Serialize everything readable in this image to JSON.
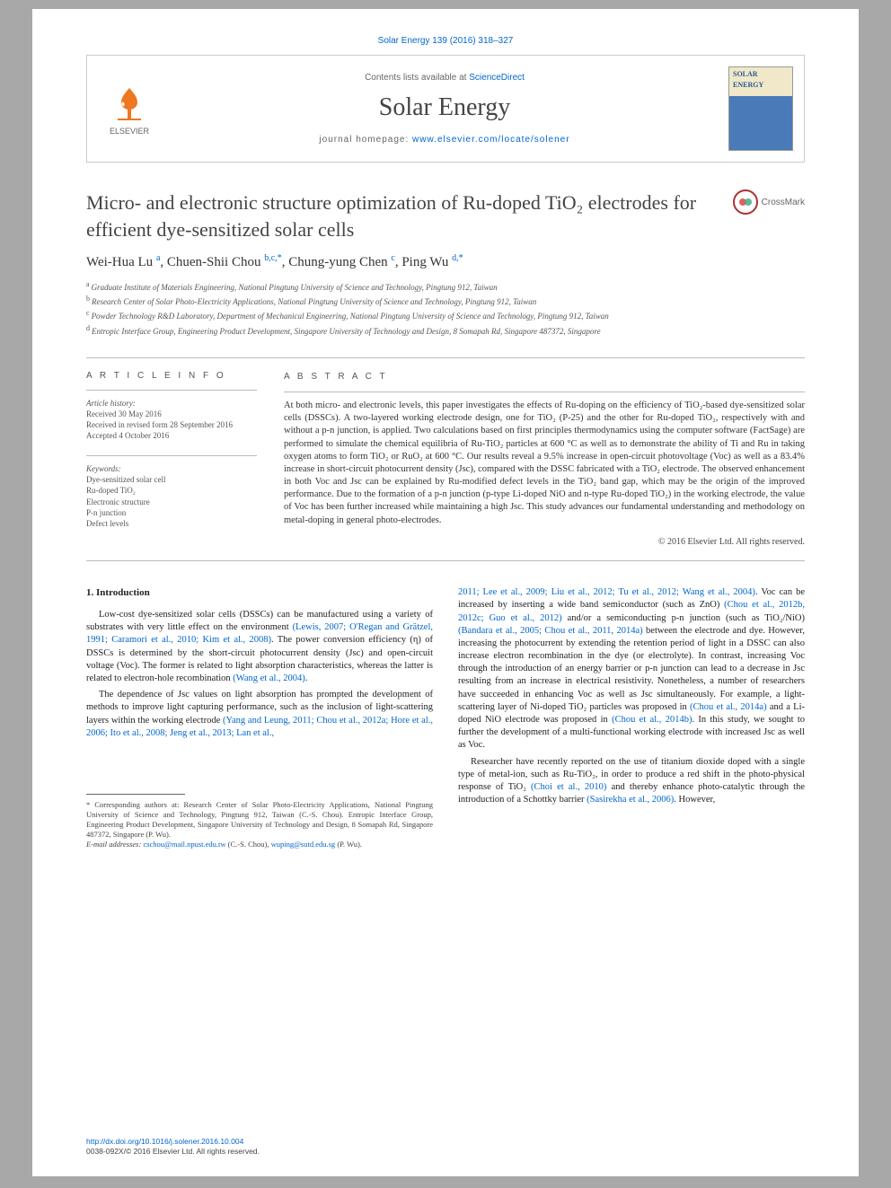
{
  "citation": "Solar Energy 139 (2016) 318–327",
  "header": {
    "contents_prefix": "Contents lists available at ",
    "contents_link": "ScienceDirect",
    "journal": "Solar Energy",
    "homepage_prefix": "journal homepage: ",
    "homepage_url": "www.elsevier.com/locate/solener",
    "publisher": "ELSEVIER",
    "cover_top1": "SOLAR",
    "cover_top2": "ENERGY"
  },
  "title": "Micro- and electronic structure optimization of Ru-doped TiO₂ electrodes for efficient dye-sensitized solar cells",
  "crossmark": "CrossMark",
  "authors_html": "Wei-Hua Lu <sup>a</sup>, Chuen-Shii Chou <sup>b,c,*</sup>, Chung-yung Chen <sup>c</sup>, Ping Wu <sup>d,*</sup>",
  "affiliations": {
    "a": "Graduate Institute of Materials Engineering, National Pingtung University of Science and Technology, Pingtung 912, Taiwan",
    "b": "Research Center of Solar Photo-Electricity Applications, National Pingtung University of Science and Technology, Pingtung 912, Taiwan",
    "c": "Powder Technology R&D Laboratory, Department of Mechanical Engineering, National Pingtung University of Science and Technology, Pingtung 912, Taiwan",
    "d": "Entropic Interface Group, Engineering Product Development, Singapore University of Technology and Design, 8 Somapah Rd, Singapore 487372, Singapore"
  },
  "info": {
    "heading": "A R T I C L E   I N F O",
    "history_label": "Article history:",
    "history": [
      "Received 30 May 2016",
      "Received in revised form 28 September 2016",
      "Accepted 4 October 2016"
    ],
    "keywords_label": "Keywords:",
    "keywords": [
      "Dye-sensitized solar cell",
      "Ru-doped TiO₂",
      "Electronic structure",
      "P-n junction",
      "Defect levels"
    ]
  },
  "abstract": {
    "heading": "A B S T R A C T",
    "text": "At both micro- and electronic levels, this paper investigates the effects of Ru-doping on the efficiency of TiO₂-based dye-sensitized solar cells (DSSCs). A two-layered working electrode design, one for TiO₂ (P-25) and the other for Ru-doped TiO₂, respectively with and without a p-n junction, is applied. Two calculations based on first principles thermodynamics using the computer software (FactSage) are performed to simulate the chemical equilibria of Ru-TiO₂ particles at 600 °C as well as to demonstrate the ability of Ti and Ru in taking oxygen atoms to form TiO₂ or RuO₂ at 600 °C. Our results reveal a 9.5% increase in open-circuit photovoltage (Voc) as well as a 83.4% increase in short-circuit photocurrent density (Jsc), compared with the DSSC fabricated with a TiO₂ electrode. The observed enhancement in both Voc and Jsc can be explained by Ru-modified defect levels in the TiO₂ band gap, which may be the origin of the improved performance. Due to the formation of a p-n junction (p-type Li-doped NiO and n-type Ru-doped TiO₂) in the working electrode, the value of Voc has been further increased while maintaining a high Jsc. This study advances our fundamental understanding and methodology on metal-doping in general photo-electrodes.",
    "copyright": "© 2016 Elsevier Ltd. All rights reserved."
  },
  "section1": {
    "heading": "1. Introduction",
    "p1a": "Low-cost dye-sensitized solar cells (DSSCs) can be manufactured using a variety of substrates with very little effect on the environment ",
    "p1ref1": "(Lewis, 2007; O'Regan and Grätzel, 1991; Caramori et al., 2010; Kim et al., 2008)",
    "p1b": ". The power conversion efficiency (η) of DSSCs is determined by the short-circuit photocurrent density (Jsc) and open-circuit voltage (Voc). The former is related to light absorption characteristics, whereas the latter is related to electron-hole recombination ",
    "p1ref2": "(Wang et al., 2004)",
    "p1c": ".",
    "p2a": "The dependence of Jsc values on light absorption has prompted the development of methods to improve light capturing performance, such as the inclusion of light-scattering layers within the working electrode ",
    "p2ref1": "(Yang and Leung, 2011; Chou et al., 2012a; Hore et al., 2006; Ito et al., 2008; Jeng et al., 2013; Lan et al.,"
  },
  "col2": {
    "p1ref": "2011; Lee et al., 2009; Liu et al., 2012; Tu et al., 2012; Wang et al., 2004)",
    "p1a": ". Voc can be increased by inserting a wide band semiconductor (such as ZnO) ",
    "p1ref2": "(Chou et al., 2012b, 2012c; Guo et al., 2012)",
    "p1b": " and/or a semiconducting p-n junction (such as TiO₂/NiO) ",
    "p1ref3": "(Bandara et al., 2005; Chou et al., 2011, 2014a)",
    "p1c": " between the electrode and dye. However, increasing the photocurrent by extending the retention period of light in a DSSC can also increase electron recombination in the dye (or electrolyte). In contrast, increasing Voc through the introduction of an energy barrier or p-n junction can lead to a decrease in Jsc resulting from an increase in electrical resistivity. Nonetheless, a number of researchers have succeeded in enhancing Voc as well as Jsc simultaneously. For example, a light-scattering layer of Ni-doped TiO₂ particles was proposed in ",
    "p1ref4": "(Chou et al., 2014a)",
    "p1d": " and a Li-doped NiO electrode was proposed in ",
    "p1ref5": "(Chou et al., 2014b)",
    "p1e": ". In this study, we sought to further the development of a multi-functional working electrode with increased Jsc as well as Voc.",
    "p2a": "Researcher have recently reported on the use of titanium dioxide doped with a single type of metal-ion, such as Ru-TiO₂, in order to produce a red shift in the photo-physical response of TiO₂ ",
    "p2ref1": "(Choi et al., 2010)",
    "p2b": " and thereby enhance photo-catalytic through the introduction of a Schottky barrier ",
    "p2ref2": "(Sasirekha et al., 2006)",
    "p2c": ". However,"
  },
  "footnotes": {
    "corresponding": "* Corresponding authors at: Research Center of Solar Photo-Electricity Applications, National Pingtung University of Science and Technology, Pingtung 912, Taiwan (C.-S. Chou). Entropic Interface Group, Engineering Product Development, Singapore University of Technology and Design, 8 Somapah Rd, Singapore 487372, Singapore (P. Wu).",
    "email_label": "E-mail addresses:",
    "email1": "cschou@mail.npust.edu.tw",
    "email1_who": "(C.-S. Chou),",
    "email2": "wuping@sutd.edu.sg",
    "email2_who": "(P. Wu)."
  },
  "footer": {
    "doi": "http://dx.doi.org/10.1016/j.solener.2016.10.004",
    "issn": "0038-092X/© 2016 Elsevier Ltd. All rights reserved."
  },
  "colors": {
    "link": "#0066cc",
    "text": "#333333",
    "rule": "#bbbbbb",
    "orange": "#ee7722"
  }
}
